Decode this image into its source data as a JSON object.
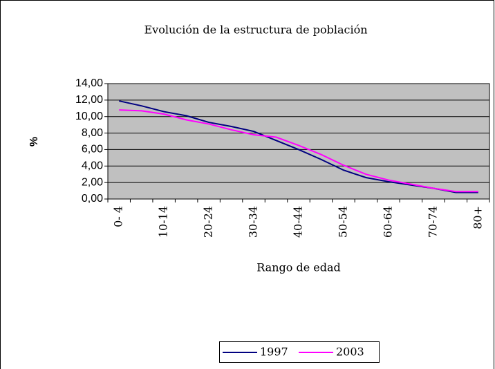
{
  "chart_data": {
    "type": "line",
    "title": "Evolución de la estructura de población",
    "x_label": "Rango de edad",
    "y_label": "%",
    "categories": [
      "0- 4",
      null,
      "10-14",
      null,
      "20-24",
      null,
      "30-34",
      null,
      "40-44",
      null,
      "50-54",
      null,
      "60-64",
      null,
      "70-74",
      null,
      "80+"
    ],
    "series": [
      {
        "name": "1997",
        "color": "#000080",
        "values": [
          11.9,
          11.3,
          10.6,
          10.1,
          9.3,
          8.8,
          8.2,
          7.1,
          6.0,
          4.8,
          3.5,
          2.6,
          2.1,
          1.7,
          1.3,
          0.8,
          0.8
        ]
      },
      {
        "name": "2003",
        "color": "#ff00ff",
        "values": [
          10.8,
          10.7,
          10.3,
          9.6,
          9.1,
          8.4,
          7.8,
          7.5,
          6.5,
          5.4,
          4.1,
          3.0,
          2.3,
          1.8,
          1.3,
          0.9,
          0.9
        ]
      }
    ],
    "ylim": [
      0,
      14
    ],
    "yticks": [
      {
        "value": 0,
        "label": "0,00"
      },
      {
        "value": 2,
        "label": "2,00"
      },
      {
        "value": 4,
        "label": "4,00"
      },
      {
        "value": 6,
        "label": "6,00"
      },
      {
        "value": 8,
        "label": "8,00"
      },
      {
        "value": 10,
        "label": "10,00"
      },
      {
        "value": 12,
        "label": "12,00"
      },
      {
        "value": 14,
        "label": "14,00"
      }
    ],
    "grid": true,
    "legend": "bottom"
  }
}
